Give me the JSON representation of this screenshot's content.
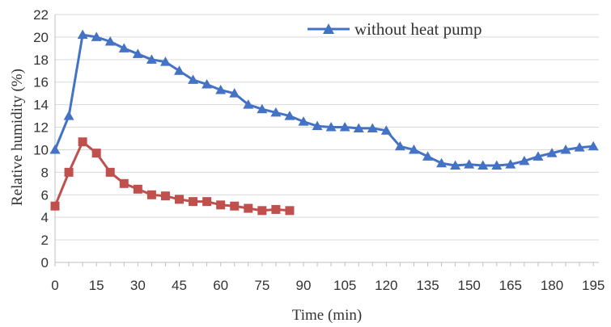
{
  "chart_data": {
    "type": "line",
    "title": "",
    "xlabel": "Time (min)",
    "ylabel": "Relative humidity (%)",
    "xlim": [
      0,
      197
    ],
    "ylim": [
      0,
      22
    ],
    "x_ticks": [
      "0",
      "15",
      "30",
      "45",
      "60",
      "75",
      "90",
      "105",
      "120",
      "135",
      "150",
      "165",
      "180",
      "195"
    ],
    "y_ticks": [
      "0",
      "2",
      "4",
      "6",
      "8",
      "10",
      "12",
      "14",
      "16",
      "18",
      "20",
      "22"
    ],
    "grid": "horizontal",
    "legend_position": "top-right",
    "series": [
      {
        "name": "without heat pump",
        "color": "#4472C4",
        "marker": "triangle",
        "x": [
          0,
          5,
          10,
          15,
          20,
          25,
          30,
          35,
          40,
          45,
          50,
          55,
          60,
          65,
          70,
          75,
          80,
          85,
          90,
          95,
          100,
          105,
          110,
          115,
          120,
          125,
          130,
          135,
          140,
          145,
          150,
          155,
          160,
          165,
          170,
          175,
          180,
          185,
          190,
          195
        ],
        "y": [
          10.0,
          13.0,
          20.2,
          20.0,
          19.6,
          19.0,
          18.5,
          18.0,
          17.8,
          17.0,
          16.2,
          15.8,
          15.3,
          15.0,
          14.0,
          13.6,
          13.3,
          13.0,
          12.5,
          12.1,
          12.0,
          12.0,
          11.9,
          11.9,
          11.7,
          10.3,
          10.0,
          9.4,
          8.8,
          8.6,
          8.7,
          8.6,
          8.6,
          8.7,
          9.0,
          9.4,
          9.7,
          10.0,
          10.2,
          10.3
        ]
      },
      {
        "name": "",
        "color": "#C0504D",
        "marker": "square",
        "x": [
          0,
          5,
          10,
          15,
          20,
          25,
          30,
          35,
          40,
          45,
          50,
          55,
          60,
          65,
          70,
          75,
          80,
          85
        ],
        "y": [
          5.0,
          8.0,
          10.7,
          9.7,
          8.0,
          7.0,
          6.5,
          6.0,
          5.9,
          5.6,
          5.4,
          5.4,
          5.1,
          5.0,
          4.8,
          4.6,
          4.7,
          4.6
        ]
      }
    ]
  }
}
